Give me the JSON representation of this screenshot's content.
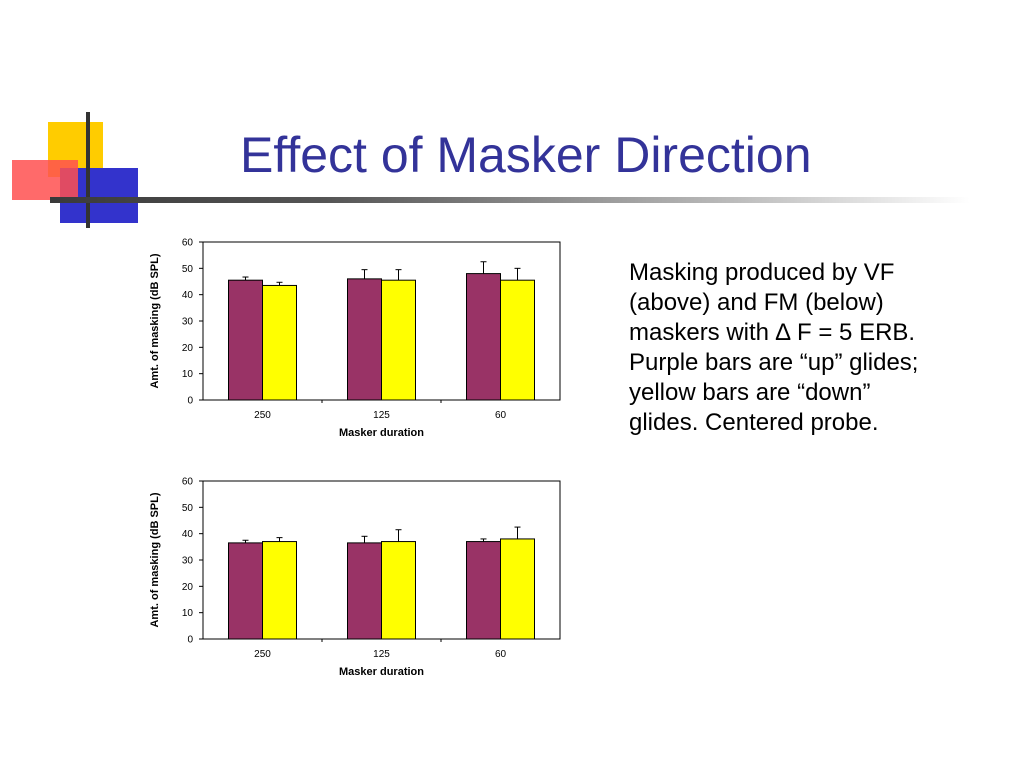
{
  "slide": {
    "title": "Effect of Masker Direction",
    "body_lines": [
      "Masking produced by VF",
      "(above) and FM (below)",
      "maskers with ∆ F = 5 ERB.",
      "Purple bars are “up” glides;",
      "yellow bars are “down”",
      "glides. Centered probe."
    ],
    "colors": {
      "title": "#333399",
      "up": "#993366",
      "down": "#ffff00"
    }
  },
  "chart_data": [
    {
      "type": "bar",
      "categories": [
        "250",
        "125",
        "60"
      ],
      "series": [
        {
          "values": [
            45.5,
            46,
            48
          ],
          "errors": [
            1.2,
            3.5,
            4.5
          ],
          "color": "#993366"
        },
        {
          "values": [
            43.5,
            45.5,
            45.5
          ],
          "errors": [
            1.2,
            4,
            4.5
          ],
          "color": "#ffff00"
        }
      ],
      "yticks": [
        0,
        10,
        20,
        30,
        40,
        50,
        60
      ],
      "ylim": [
        0,
        60
      ],
      "xlabel": "Masker duration",
      "ylabel": "Amt. of masking (dB SPL)"
    },
    {
      "type": "bar",
      "categories": [
        "250",
        "125",
        "60"
      ],
      "series": [
        {
          "values": [
            36.5,
            36.5,
            37
          ],
          "errors": [
            1,
            2.5,
            1
          ],
          "color": "#993366"
        },
        {
          "values": [
            37,
            37,
            38
          ],
          "errors": [
            1.5,
            4.5,
            4.5
          ],
          "color": "#ffff00"
        }
      ],
      "yticks": [
        0,
        10,
        20,
        30,
        40,
        50,
        60
      ],
      "ylim": [
        0,
        60
      ],
      "xlabel": "Masker duration",
      "ylabel": "Amt. of masking (dB SPL)"
    }
  ]
}
